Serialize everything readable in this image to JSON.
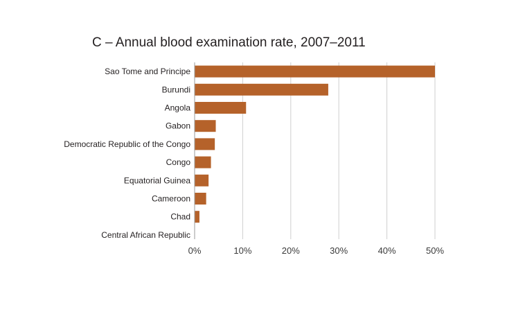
{
  "chart_data": {
    "type": "bar",
    "orientation": "horizontal",
    "title": "C – Annual blood examination rate, 2007–2011",
    "xlabel": "",
    "ylabel": "",
    "categories": [
      "Sao Tome and Principe",
      "Burundi",
      "Angola",
      "Gabon",
      "Democratic Republic of the Congo",
      "Congo",
      "Equatorial Guinea",
      "Cameroon",
      "Chad",
      "Central African Republic"
    ],
    "values": [
      50.0,
      27.8,
      10.7,
      4.4,
      4.2,
      3.4,
      2.9,
      2.4,
      1.0,
      0.0
    ],
    "xlim": [
      0,
      50
    ],
    "x_ticks": [
      0,
      10,
      20,
      30,
      40,
      50
    ],
    "x_tick_labels": [
      "0%",
      "10%",
      "20%",
      "30%",
      "40%",
      "50%"
    ],
    "grid": true,
    "legend": "none",
    "bar_color": "#b5622a"
  }
}
